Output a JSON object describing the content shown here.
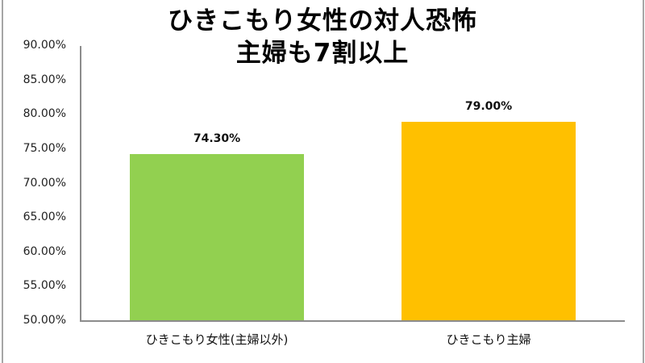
{
  "chart_data": {
    "type": "bar",
    "title": "ひきこもり女性の対人恐怖\n主婦も7割以上",
    "title_lines": [
      "ひきこもり女性の対人恐怖",
      "主婦も7割以上"
    ],
    "categories": [
      "ひきこもり女性(主婦以外)",
      "ひきこもり主婦"
    ],
    "values": [
      74.3,
      79.0
    ],
    "value_labels": [
      "74.30%",
      "79.00%"
    ],
    "colors": [
      "#92d050",
      "#ffc000"
    ],
    "xlabel": "",
    "ylabel": "",
    "ylim": [
      50,
      90
    ],
    "y_ticks": [
      "90.00%",
      "85.00%",
      "80.00%",
      "75.00%",
      "70.00%",
      "65.00%",
      "60.00%",
      "55.00%",
      "50.00%"
    ],
    "y_tick_values": [
      90,
      85,
      80,
      75,
      70,
      65,
      60,
      55,
      50
    ],
    "grid": false,
    "legend": "none"
  }
}
